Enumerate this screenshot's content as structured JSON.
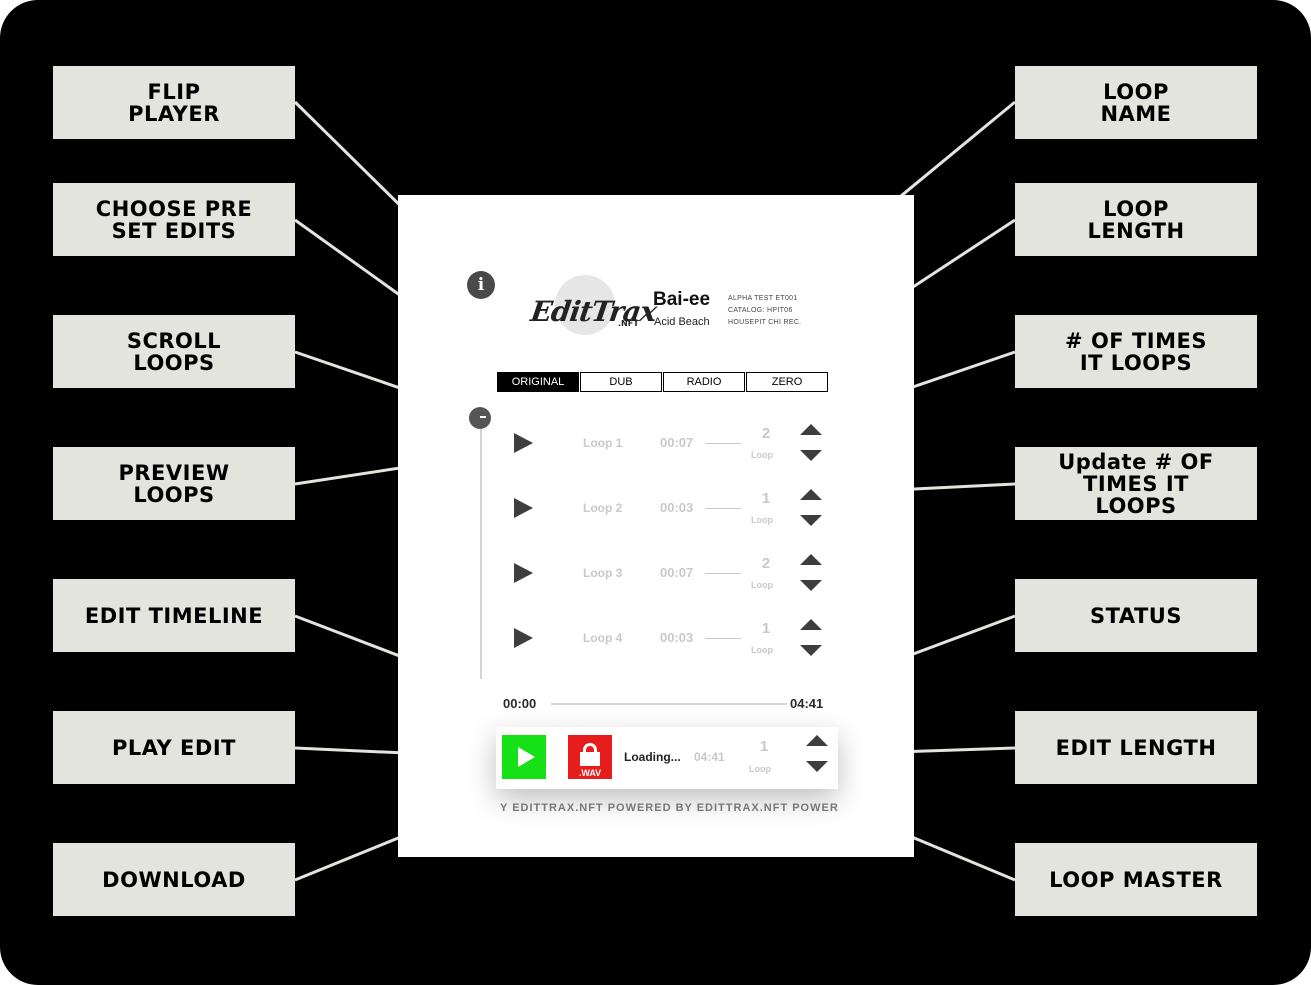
{
  "callouts_left": [
    {
      "id": "flip-player",
      "text": "FLIP\nPLAYER"
    },
    {
      "id": "choose-preset",
      "text": "CHOOSE PRE\nSET EDITS"
    },
    {
      "id": "scroll-loops",
      "text": "SCROLL\nLOOPS"
    },
    {
      "id": "preview-loops",
      "text": "PREVIEW\nLOOPS"
    },
    {
      "id": "edit-timeline",
      "text": "EDIT TIMELINE"
    },
    {
      "id": "play-edit",
      "text": "PLAY EDIT"
    },
    {
      "id": "download",
      "text": "DOWNLOAD"
    }
  ],
  "callouts_right": [
    {
      "id": "loop-name",
      "text": "LOOP\nNAME"
    },
    {
      "id": "loop-length",
      "text": "LOOP\nLENGTH"
    },
    {
      "id": "times-it-loops",
      "text": "# OF TIMES\nIT LOOPS"
    },
    {
      "id": "update-times",
      "text": "Update # OF\nTIMES IT\nLOOPS"
    },
    {
      "id": "status",
      "text": "STATUS"
    },
    {
      "id": "edit-length",
      "text": "EDIT LENGTH"
    },
    {
      "id": "loop-master",
      "text": "LOOP MASTER"
    }
  ],
  "player": {
    "info_icon": "i",
    "logo_text": "EditTrax",
    "logo_nft": ".NFT",
    "track_title": "Bai-ee",
    "artist": "Acid Beach",
    "meta": [
      "ALPHA TEST ET001",
      "CATALOG: HPIT06",
      "HOUSEPIT CHI REC."
    ],
    "tabs": [
      {
        "label": "ORIGINAL",
        "active": true
      },
      {
        "label": "DUB",
        "active": false
      },
      {
        "label": "RADIO",
        "active": false
      },
      {
        "label": "ZERO",
        "active": false
      }
    ],
    "loops": [
      {
        "name": "Loop 1",
        "length": "00:07",
        "count": "2",
        "unit": "Loop"
      },
      {
        "name": "Loop 2",
        "length": "00:03",
        "count": "1",
        "unit": "Loop"
      },
      {
        "name": "Loop 3",
        "length": "00:07",
        "count": "2",
        "unit": "Loop"
      },
      {
        "name": "Loop 4",
        "length": "00:03",
        "count": "1",
        "unit": "Loop"
      }
    ],
    "timeline": {
      "start": "00:00",
      "end": "04:41"
    },
    "status": "Loading...",
    "edit_length": "04:41",
    "master": {
      "count": "1",
      "unit": "Loop"
    },
    "download_label": ".WAV",
    "footer": "Y EDITTRAX.NFT   POWERED BY EDITTRAX.NFT   POWERED BY EDITTRAX.NFT",
    "colors": {
      "play": "#16e016",
      "download": "#e51d1d",
      "active_tab": "#000000"
    }
  }
}
